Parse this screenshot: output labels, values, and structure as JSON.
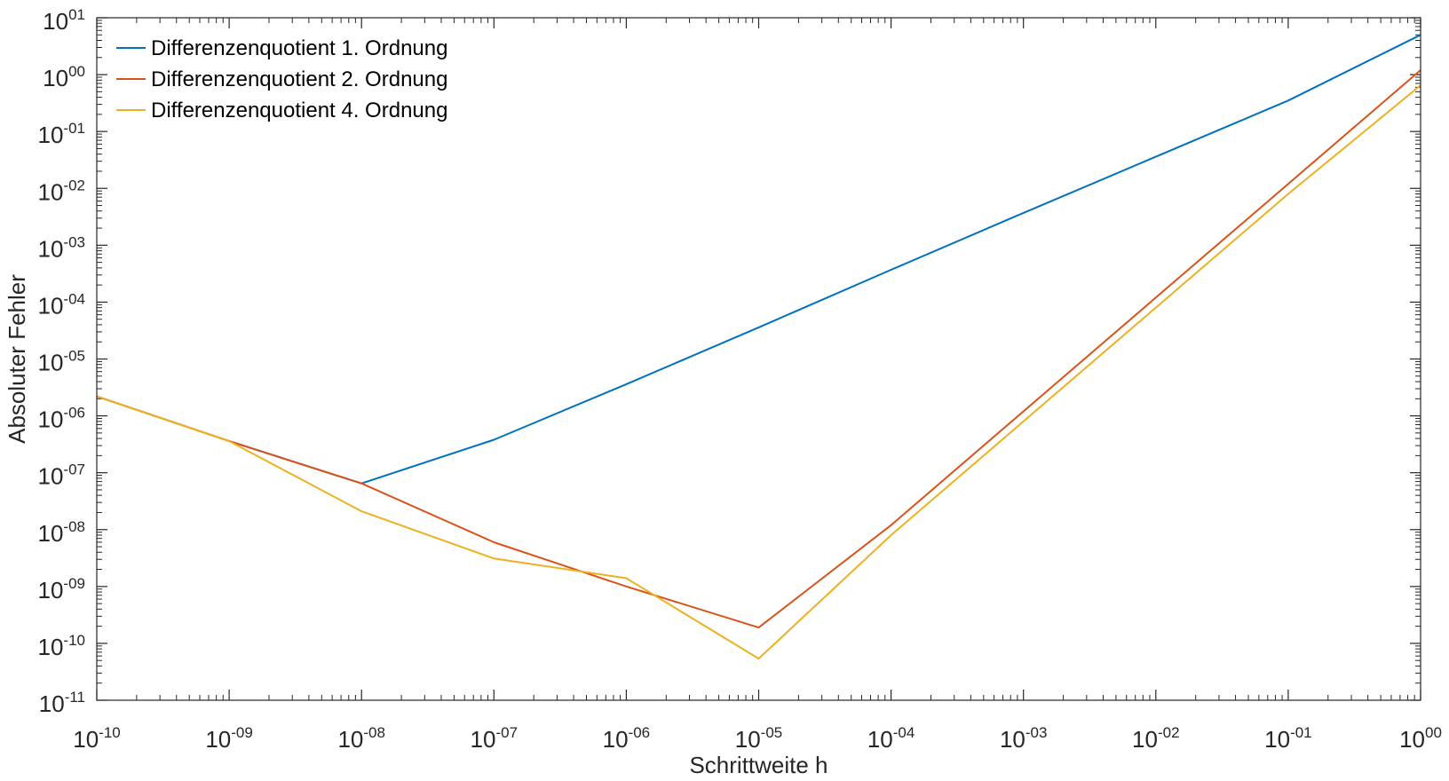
{
  "chart_data": {
    "type": "line",
    "xscale": "log",
    "yscale": "log",
    "xlabel": "Schrittweite h",
    "ylabel": "Absoluter Fehler",
    "xlim": [
      1e-10,
      1
    ],
    "ylim": [
      1e-11,
      10
    ],
    "x_ticks": [
      {
        "base": "10",
        "exp": "-10",
        "value": 1e-10
      },
      {
        "base": "10",
        "exp": "-09",
        "value": 1e-09
      },
      {
        "base": "10",
        "exp": "-08",
        "value": 1e-08
      },
      {
        "base": "10",
        "exp": "-07",
        "value": 1e-07
      },
      {
        "base": "10",
        "exp": "-06",
        "value": 1e-06
      },
      {
        "base": "10",
        "exp": "-05",
        "value": 1e-05
      },
      {
        "base": "10",
        "exp": "-04",
        "value": 0.0001
      },
      {
        "base": "10",
        "exp": "-03",
        "value": 0.001
      },
      {
        "base": "10",
        "exp": "-02",
        "value": 0.01
      },
      {
        "base": "10",
        "exp": "-01",
        "value": 0.1
      },
      {
        "base": "10",
        "exp": "00",
        "value": 1
      }
    ],
    "y_ticks": [
      {
        "base": "10",
        "exp": "01",
        "value": 10
      },
      {
        "base": "10",
        "exp": "00",
        "value": 1
      },
      {
        "base": "10",
        "exp": "-01",
        "value": 0.1
      },
      {
        "base": "10",
        "exp": "-02",
        "value": 0.01
      },
      {
        "base": "10",
        "exp": "-03",
        "value": 0.001
      },
      {
        "base": "10",
        "exp": "-04",
        "value": 0.0001
      },
      {
        "base": "10",
        "exp": "-05",
        "value": 1e-05
      },
      {
        "base": "10",
        "exp": "-06",
        "value": 1e-06
      },
      {
        "base": "10",
        "exp": "-07",
        "value": 1e-07
      },
      {
        "base": "10",
        "exp": "-08",
        "value": 1e-08
      },
      {
        "base": "10",
        "exp": "-09",
        "value": 1e-09
      },
      {
        "base": "10",
        "exp": "-10",
        "value": 1e-10
      },
      {
        "base": "10",
        "exp": "-11",
        "value": 1e-11
      }
    ],
    "x": [
      1e-10,
      1e-09,
      1e-08,
      1e-07,
      1e-06,
      1e-05,
      0.0001,
      0.001,
      0.01,
      0.1,
      1
    ],
    "series": [
      {
        "name": "Differenzenquotient 1. Ordnung",
        "color": "#0072BD",
        "values": [
          2.2e-06,
          3.6e-07,
          6.5e-08,
          3.8e-07,
          3.6e-06,
          3.6e-05,
          0.00037,
          0.0037,
          0.036,
          0.35,
          5.0
        ]
      },
      {
        "name": "Differenzenquotient 2. Ordnung",
        "color": "#D95319",
        "values": [
          2.2e-06,
          3.6e-07,
          6.5e-08,
          6e-09,
          1e-09,
          1.9e-10,
          1.2e-08,
          1.2e-06,
          0.00012,
          0.012,
          1.2
        ]
      },
      {
        "name": "Differenzenquotient 4. Ordnung",
        "color": "#EDB120",
        "values": [
          2.2e-06,
          3.6e-07,
          2.1e-08,
          3.1e-09,
          1.4e-09,
          5.4e-11,
          8e-09,
          8e-07,
          8e-05,
          0.008,
          0.65
        ]
      }
    ],
    "legend": {
      "position": "top-left"
    },
    "grid": false
  }
}
